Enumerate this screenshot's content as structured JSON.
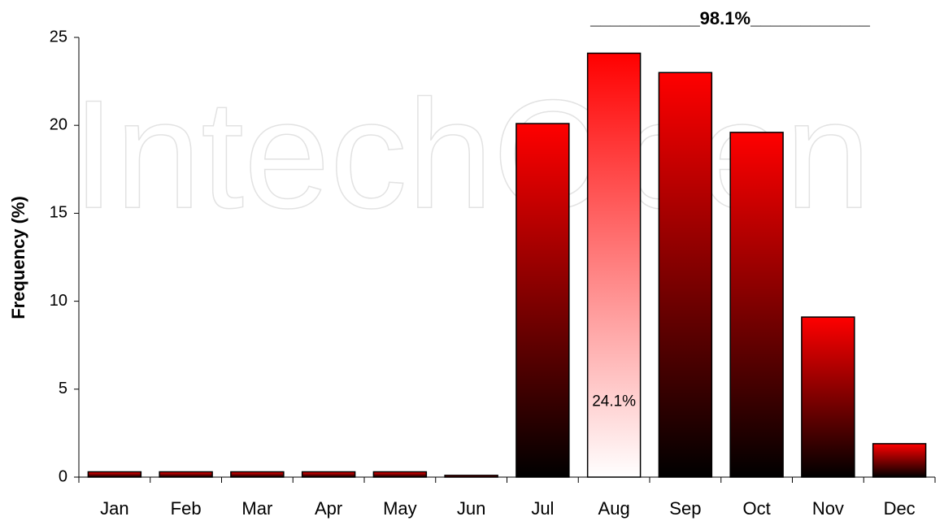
{
  "chart_data": {
    "type": "bar",
    "watermark": "IntechOpen",
    "annotation": "___________98.1%____________",
    "ylabel": "Frequency (%)",
    "categories": [
      "Jan",
      "Feb",
      "Mar",
      "Apr",
      "May",
      "Jun",
      "Jul",
      "Aug",
      "Sep",
      "Oct",
      "Nov",
      "Dec"
    ],
    "values": [
      0.3,
      0.3,
      0.3,
      0.3,
      0.3,
      0.1,
      20.1,
      24.1,
      23.0,
      19.6,
      9.1,
      1.9
    ],
    "value_labels": [
      null,
      null,
      null,
      null,
      null,
      null,
      null,
      "24.1%",
      null,
      null,
      null,
      null
    ],
    "color": "#ff0000",
    "gradient_to": [
      "#000000",
      "#000000",
      "#000000",
      "#000000",
      "#000000",
      "#000000",
      "#000000",
      "#ffffff",
      "#000000",
      "#000000",
      "#000000",
      "#000000"
    ],
    "ylim": [
      0,
      25
    ],
    "yticks": [
      0,
      5,
      10,
      15,
      20,
      25
    ],
    "grid": false
  }
}
